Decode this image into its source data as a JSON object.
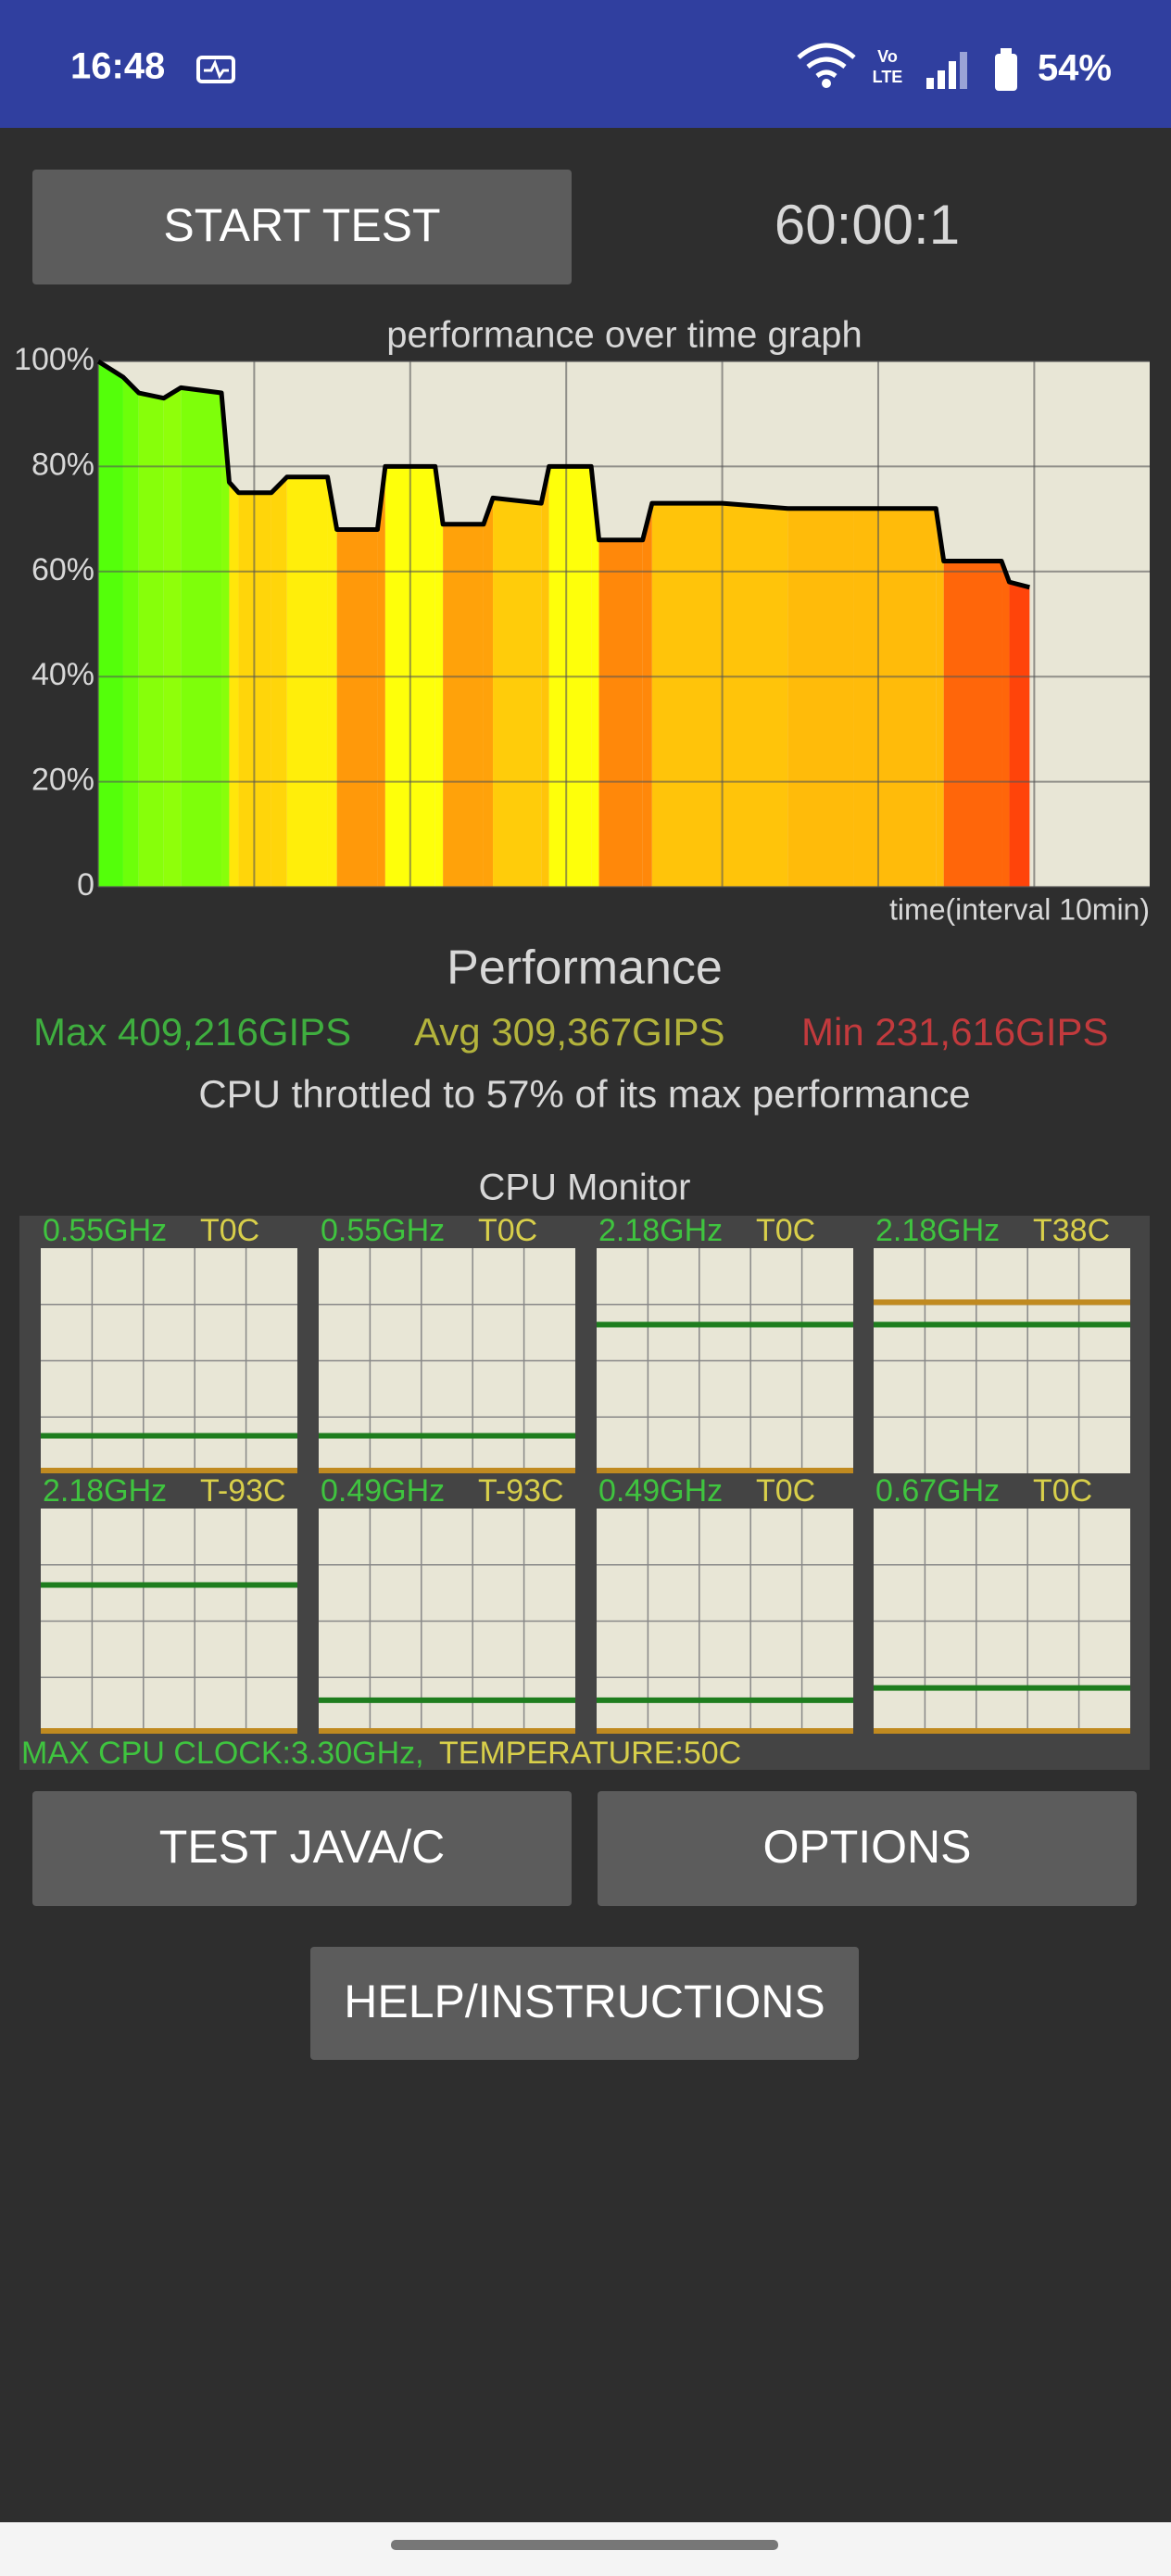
{
  "status_bar": {
    "time": "16:48",
    "network": [
      "Vo",
      "LTE"
    ],
    "battery": "54%"
  },
  "controls": {
    "start_button": "START TEST",
    "timer": "60:00:1"
  },
  "chart_data": {
    "type": "area",
    "title": "performance over time graph",
    "x_label": "time(interval 10min)",
    "x": [
      0,
      1.6,
      2.6,
      4.2,
      5.3,
      7.9,
      8.4,
      9.0,
      11.1,
      12.1,
      14.7,
      15.3,
      17.9,
      18.4,
      21.6,
      22.1,
      24.7,
      25.3,
      28.4,
      28.9,
      31.6,
      32.1,
      34.9,
      35.5,
      40.0,
      44.2,
      48.4,
      53.7,
      54.2,
      57.9,
      58.4,
      59.7
    ],
    "values": [
      100,
      97,
      94,
      93,
      95,
      94,
      77,
      75,
      75,
      78,
      78,
      68,
      68,
      80,
      80,
      69,
      69,
      74,
      73,
      80,
      80,
      66,
      66,
      73,
      73,
      72,
      72,
      72,
      62,
      62,
      58,
      57
    ],
    "xlim": [
      0,
      67.4
    ],
    "xticks": [
      0,
      10,
      20,
      30,
      40,
      50,
      60
    ],
    "ylim": [
      0,
      100
    ],
    "yticks": [
      0,
      {
        "value": 20,
        "label": "20%"
      },
      {
        "value": 40,
        "label": "40%"
      },
      {
        "value": 60,
        "label": "60%"
      },
      {
        "value": 80,
        "label": "80%"
      },
      {
        "value": 100,
        "label": "100%"
      }
    ],
    "grid": true,
    "line_color": "#000000",
    "background": "#e8e6d6"
  },
  "performance": {
    "title": "Performance",
    "max": "Max 409,216GIPS",
    "avg": "Avg 309,367GIPS",
    "min": "Min 231,616GIPS",
    "summary": "CPU throttled to 57% of its max performance"
  },
  "cpu_monitor": {
    "title": "CPU Monitor",
    "cores": [
      {
        "freq": {
          "value": 0.55,
          "label": "0.55GHz"
        },
        "temp": {
          "value": 0,
          "label": "T0C"
        }
      },
      {
        "freq": {
          "value": 0.55,
          "label": "0.55GHz"
        },
        "temp": {
          "value": 0,
          "label": "T0C"
        }
      },
      {
        "freq": {
          "value": 2.18,
          "label": "2.18GHz"
        },
        "temp": {
          "value": 0,
          "label": "T0C"
        }
      },
      {
        "freq": {
          "value": 2.18,
          "label": "2.18GHz"
        },
        "temp": {
          "value": 38,
          "label": "T38C"
        }
      },
      {
        "freq": {
          "value": 2.18,
          "label": "2.18GHz"
        },
        "temp": {
          "value": -93,
          "label": "T-93C"
        }
      },
      {
        "freq": {
          "value": 0.49,
          "label": "0.49GHz"
        },
        "temp": {
          "value": -93,
          "label": "T-93C"
        }
      },
      {
        "freq": {
          "value": 0.49,
          "label": "0.49GHz"
        },
        "temp": {
          "value": 0,
          "label": "T0C"
        }
      },
      {
        "freq": {
          "value": 0.67,
          "label": "0.67GHz"
        },
        "temp": {
          "value": 0,
          "label": "T0C"
        }
      }
    ],
    "max_clock": {
      "value": 3.3,
      "label": "MAX CPU CLOCK:3.30GHz,"
    },
    "max_temperature": {
      "value": 50,
      "label": "TEMPERATURE:50C"
    }
  },
  "buttons": [
    "TEST JAVA/C",
    "OPTIONS",
    "HELP/INSTRUCTIONS"
  ]
}
